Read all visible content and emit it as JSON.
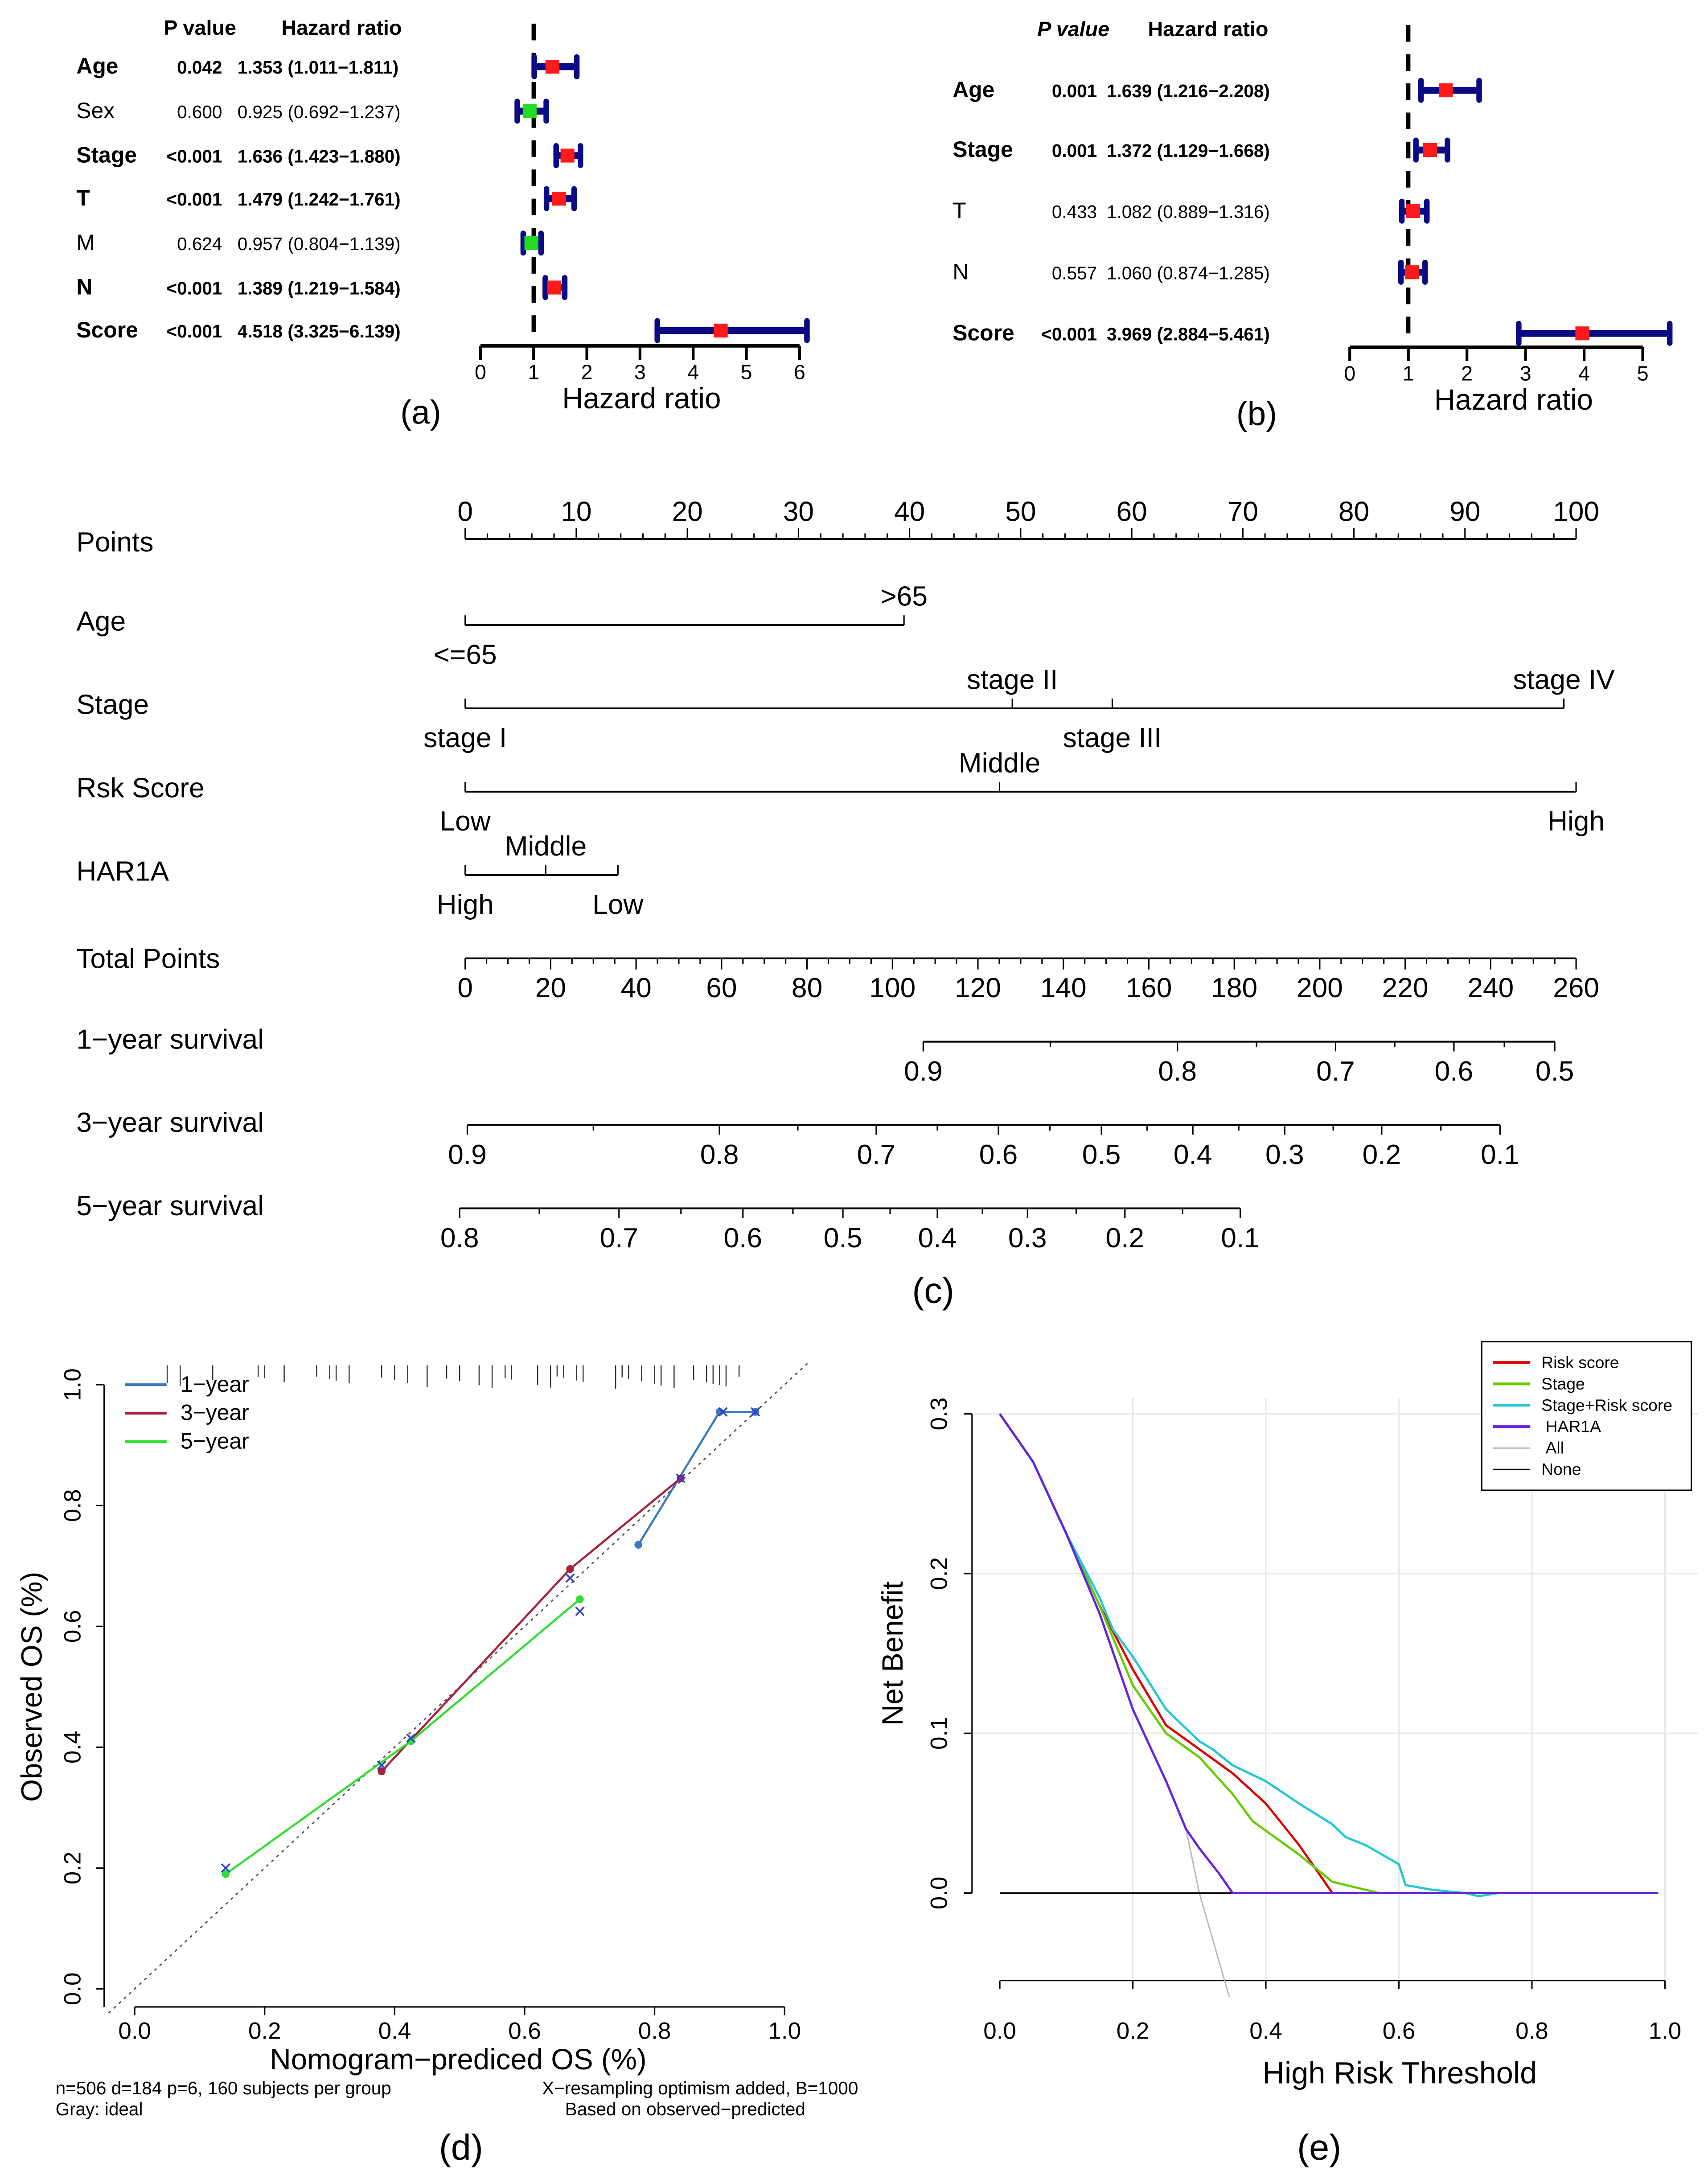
{
  "chart_data": [
    {
      "id": "a",
      "type": "forest",
      "panel_label": "(a)",
      "header": {
        "p": "P value",
        "hr": "Hazard ratio"
      },
      "xlabel": "Hazard ratio",
      "xticks": [
        0,
        1,
        2,
        3,
        4,
        5,
        6
      ],
      "xlim": [
        0,
        6
      ],
      "reference": 1,
      "rows": [
        {
          "label": "Age",
          "p": "0.042",
          "hr_text": "1.353 (1.011−1.811)",
          "hr": 1.353,
          "lo": 1.011,
          "hi": 1.811,
          "bold": true,
          "color": "#ff1a1a"
        },
        {
          "label": "Sex",
          "p": "0.600",
          "hr_text": "0.925 (0.692−1.237)",
          "hr": 0.925,
          "lo": 0.692,
          "hi": 1.237,
          "bold": false,
          "color": "#22dd22"
        },
        {
          "label": "Stage",
          "p": "<0.001",
          "hr_text": "1.636 (1.423−1.880)",
          "hr": 1.636,
          "lo": 1.423,
          "hi": 1.88,
          "bold": true,
          "color": "#ff1a1a"
        },
        {
          "label": "T",
          "p": "<0.001",
          "hr_text": "1.479 (1.242−1.761)",
          "hr": 1.479,
          "lo": 1.242,
          "hi": 1.761,
          "bold": true,
          "color": "#ff1a1a"
        },
        {
          "label": "M",
          "p": "0.624",
          "hr_text": "0.957 (0.804−1.139)",
          "hr": 0.957,
          "lo": 0.804,
          "hi": 1.139,
          "bold": false,
          "color": "#22dd22"
        },
        {
          "label": "N",
          "p": "<0.001",
          "hr_text": "1.389 (1.219−1.584)",
          "hr": 1.389,
          "lo": 1.219,
          "hi": 1.584,
          "bold": true,
          "color": "#ff1a1a"
        },
        {
          "label": "Score",
          "p": "<0.001",
          "hr_text": "4.518 (3.325−6.139)",
          "hr": 4.518,
          "lo": 3.325,
          "hi": 6.139,
          "bold": true,
          "color": "#ff1a1a"
        }
      ]
    },
    {
      "id": "b",
      "type": "forest",
      "panel_label": "(b)",
      "header": {
        "p": "P value",
        "hr": "Hazard ratio"
      },
      "xlabel": "Hazard ratio",
      "xticks": [
        0,
        1,
        2,
        3,
        4,
        5
      ],
      "xlim": [
        0,
        5.5
      ],
      "reference": 1,
      "rows": [
        {
          "label": "Age",
          "p": "0.001",
          "hr_text": "1.639 (1.216−2.208)",
          "hr": 1.639,
          "lo": 1.216,
          "hi": 2.208,
          "bold": true,
          "color": "#ff1a1a"
        },
        {
          "label": "Stage",
          "p": "0.001",
          "hr_text": "1.372 (1.129−1.668)",
          "hr": 1.372,
          "lo": 1.129,
          "hi": 1.668,
          "bold": true,
          "color": "#ff1a1a"
        },
        {
          "label": "T",
          "p": "0.433",
          "hr_text": "1.082 (0.889−1.316)",
          "hr": 1.082,
          "lo": 0.889,
          "hi": 1.316,
          "bold": false,
          "color": "#ff1a1a"
        },
        {
          "label": "N",
          "p": "0.557",
          "hr_text": "1.060 (0.874−1.285)",
          "hr": 1.06,
          "lo": 0.874,
          "hi": 1.285,
          "bold": false,
          "color": "#ff1a1a"
        },
        {
          "label": "Score",
          "p": "<0.001",
          "hr_text": "3.969 (2.884−5.461)",
          "hr": 3.969,
          "lo": 2.884,
          "hi": 5.461,
          "bold": true,
          "color": "#ff1a1a"
        }
      ]
    },
    {
      "id": "c",
      "type": "nomogram",
      "panel_label": "(c)",
      "points": {
        "label": "Points",
        "ticks": [
          0,
          10,
          20,
          30,
          40,
          50,
          60,
          70,
          80,
          90,
          100
        ]
      },
      "variables": [
        {
          "label": "Age",
          "ticks": [
            {
              "pt": 0,
              "text": "<=65",
              "side": "below"
            },
            {
              "pt": 39.5,
              "text": ">65",
              "side": "above"
            }
          ]
        },
        {
          "label": "Stage",
          "ticks": [
            {
              "pt": 0,
              "text": "stage I",
              "side": "below"
            },
            {
              "pt": 49.25,
              "text": "stage II",
              "side": "above"
            },
            {
              "pt": 58.25,
              "text": "stage III",
              "side": "below"
            },
            {
              "pt": 98.9,
              "text": "stage IV",
              "side": "above"
            }
          ]
        },
        {
          "label": "Rsk Score",
          "ticks": [
            {
              "pt": 0,
              "text": "Low",
              "side": "below"
            },
            {
              "pt": 48.1,
              "text": "Middle",
              "side": "above"
            },
            {
              "pt": 100,
              "text": "High",
              "side": "below"
            }
          ]
        },
        {
          "label": "HAR1A",
          "ticks": [
            {
              "pt": 0,
              "text": "High",
              "side": "below"
            },
            {
              "pt": 7.25,
              "text": "Middle",
              "side": "above"
            },
            {
              "pt": 13.75,
              "text": "Low",
              "side": "below"
            }
          ]
        }
      ],
      "total_points": {
        "label": "Total Points",
        "ticks": [
          0,
          20,
          40,
          60,
          80,
          100,
          120,
          140,
          160,
          180,
          200,
          220,
          240,
          260
        ]
      },
      "survival": [
        {
          "label": "1−year survival",
          "ticks": [
            {
              "tp": 107.2,
              "text": "0.9"
            },
            {
              "tp": 166.7,
              "text": "0.8"
            },
            {
              "tp": 203.7,
              "text": "0.7"
            },
            {
              "tp": 231.4,
              "text": "0.6"
            },
            {
              "tp": 255,
              "text": "0.5"
            }
          ]
        },
        {
          "label": "3−year survival",
          "ticks": [
            {
              "tp": 0.5,
              "text": "0.9"
            },
            {
              "tp": 59.5,
              "text": "0.8"
            },
            {
              "tp": 96.2,
              "text": "0.7"
            },
            {
              "tp": 124.8,
              "text": "0.6"
            },
            {
              "tp": 148.9,
              "text": "0.5"
            },
            {
              "tp": 170.3,
              "text": "0.4"
            },
            {
              "tp": 191.8,
              "text": "0.3"
            },
            {
              "tp": 214.5,
              "text": "0.2"
            },
            {
              "tp": 242.2,
              "text": "0.1"
            }
          ]
        },
        {
          "label": "5−year survival",
          "ticks": [
            {
              "tp": -1.3,
              "text": "0.8"
            },
            {
              "tp": 36,
              "text": "0.7"
            },
            {
              "tp": 65,
              "text": "0.6"
            },
            {
              "tp": 88.4,
              "text": "0.5"
            },
            {
              "tp": 110.5,
              "text": "0.4"
            },
            {
              "tp": 131.6,
              "text": "0.3"
            },
            {
              "tp": 154.4,
              "text": "0.2"
            },
            {
              "tp": 181.4,
              "text": "0.1"
            }
          ]
        }
      ]
    },
    {
      "id": "d",
      "type": "line",
      "panel_label": "(d)",
      "xlabel": "Nomogram−prediced OS (%)",
      "ylabel": "Observed OS (%)",
      "xlim": [
        -0.04,
        1.04
      ],
      "ylim": [
        -0.03,
        1.05
      ],
      "xticks": [
        "0.0",
        "0.2",
        "0.4",
        "0.6",
        "0.8",
        "1.0"
      ],
      "yticks": [
        "0.0",
        "0.2",
        "0.4",
        "0.6",
        "0.8",
        "1.0"
      ],
      "legend_position": "top-left",
      "series": [
        {
          "name": "1−year",
          "color": "#3a78c0",
          "points": [
            [
              0.775,
              0.735
            ],
            [
              0.9,
              0.955
            ],
            [
              0.955,
              0.955
            ]
          ]
        },
        {
          "name": "3−year",
          "color": "#a8203c",
          "points": [
            [
              0.38,
              0.36
            ],
            [
              0.67,
              0.695
            ],
            [
              0.84,
              0.845
            ]
          ]
        },
        {
          "name": "5−year",
          "color": "#33dd33",
          "points": [
            [
              0.14,
              0.19
            ],
            [
              0.425,
              0.41
            ],
            [
              0.685,
              0.645
            ]
          ]
        }
      ],
      "corrected_points": [
        [
          0.14,
          0.2
        ],
        [
          0.38,
          0.37
        ],
        [
          0.425,
          0.415
        ],
        [
          0.67,
          0.68
        ],
        [
          0.685,
          0.625
        ],
        [
          0.84,
          0.845
        ],
        [
          0.905,
          0.955
        ],
        [
          0.955,
          0.955
        ]
      ],
      "rug": [
        0.05,
        0.07,
        0.12,
        0.19,
        0.2,
        0.23,
        0.28,
        0.3,
        0.31,
        0.33,
        0.38,
        0.4,
        0.42,
        0.45,
        0.48,
        0.5,
        0.53,
        0.55,
        0.57,
        0.58,
        0.62,
        0.64,
        0.65,
        0.66,
        0.68,
        0.69,
        0.74,
        0.75,
        0.76,
        0.78,
        0.8,
        0.81,
        0.83,
        0.86,
        0.88,
        0.89,
        0.9,
        0.91,
        0.93
      ],
      "footnote": {
        "left1": "n=506 d=184 p=6, 160 subjects per group",
        "right1": "X−resampling optimism added, B=1000",
        "left2": "Gray: ideal",
        "right2": "Based on observed−predicted"
      }
    },
    {
      "id": "e",
      "type": "line",
      "panel_label": "(e)",
      "xlabel": "High Risk Threshold",
      "ylabel": "Net Benefit",
      "xlim": [
        0,
        1
      ],
      "ylim": [
        -0.055,
        0.3
      ],
      "xticks": [
        "0.0",
        "0.2",
        "0.4",
        "0.6",
        "0.8",
        "1.0"
      ],
      "yticks": [
        "0.0",
        "0.1",
        "0.2",
        "0.3"
      ],
      "grid": true,
      "legend_position": "top-right",
      "series": [
        {
          "name": "Risk score",
          "color": "#dd0000",
          "points": [
            [
              0,
              0.3
            ],
            [
              0.05,
              0.27
            ],
            [
              0.1,
              0.225
            ],
            [
              0.15,
              0.18
            ],
            [
              0.2,
              0.14
            ],
            [
              0.25,
              0.105
            ],
            [
              0.3,
              0.09
            ],
            [
              0.35,
              0.075
            ],
            [
              0.4,
              0.056
            ],
            [
              0.45,
              0.03
            ],
            [
              0.5,
              0.0
            ],
            [
              0.99,
              0
            ]
          ]
        },
        {
          "name": "Stage",
          "color": "#66cc00",
          "points": [
            [
              0,
              0.3
            ],
            [
              0.05,
              0.27
            ],
            [
              0.1,
              0.225
            ],
            [
              0.15,
              0.18
            ],
            [
              0.2,
              0.13
            ],
            [
              0.25,
              0.1
            ],
            [
              0.3,
              0.085
            ],
            [
              0.35,
              0.062
            ],
            [
              0.38,
              0.045
            ],
            [
              0.45,
              0.024
            ],
            [
              0.5,
              0.007
            ],
            [
              0.57,
              0
            ],
            [
              0.99,
              0
            ]
          ]
        },
        {
          "name": "Stage+Risk score",
          "color": "#22c8d2",
          "points": [
            [
              0,
              0.3
            ],
            [
              0.05,
              0.27
            ],
            [
              0.1,
              0.225
            ],
            [
              0.15,
              0.185
            ],
            [
              0.17,
              0.165
            ],
            [
              0.2,
              0.148
            ],
            [
              0.25,
              0.115
            ],
            [
              0.3,
              0.095
            ],
            [
              0.32,
              0.09
            ],
            [
              0.35,
              0.08
            ],
            [
              0.4,
              0.07
            ],
            [
              0.45,
              0.056
            ],
            [
              0.5,
              0.043
            ],
            [
              0.52,
              0.035
            ],
            [
              0.55,
              0.03
            ],
            [
              0.6,
              0.018
            ],
            [
              0.61,
              0.005
            ],
            [
              0.65,
              0.002
            ],
            [
              0.7,
              0
            ],
            [
              0.72,
              -0.002
            ],
            [
              0.75,
              0
            ],
            [
              0.99,
              0
            ]
          ]
        },
        {
          "name": "HAR1A",
          "color": "#6622dd",
          "points": [
            [
              0,
              0.3
            ],
            [
              0.05,
              0.27
            ],
            [
              0.1,
              0.225
            ],
            [
              0.15,
              0.175
            ],
            [
              0.2,
              0.115
            ],
            [
              0.25,
              0.07
            ],
            [
              0.28,
              0.04
            ],
            [
              0.3,
              0.028
            ],
            [
              0.33,
              0.012
            ],
            [
              0.35,
              0
            ],
            [
              0.99,
              0
            ]
          ]
        },
        {
          "name": "All",
          "color": "#bbbbbb",
          "points": [
            [
              0,
              0.3
            ],
            [
              0.05,
              0.27
            ],
            [
              0.1,
              0.225
            ],
            [
              0.15,
              0.175
            ],
            [
              0.2,
              0.115
            ],
            [
              0.25,
              0.07
            ],
            [
              0.28,
              0.04
            ],
            [
              0.3,
              0.0
            ],
            [
              0.345,
              -0.065
            ]
          ]
        },
        {
          "name": "None",
          "color": "#000000",
          "points": [
            [
              0,
              0
            ],
            [
              0.99,
              0
            ]
          ]
        }
      ]
    }
  ]
}
